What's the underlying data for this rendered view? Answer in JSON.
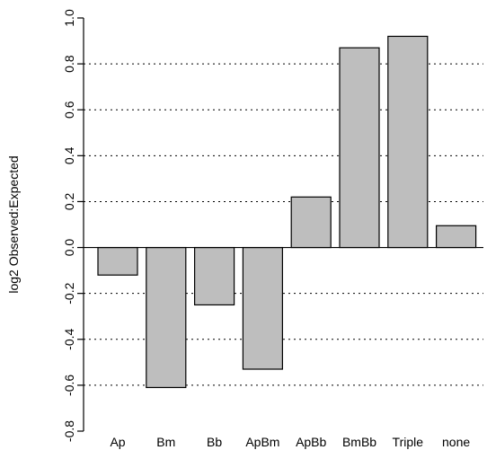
{
  "chart_data": {
    "type": "bar",
    "categories": [
      "Ap",
      "Bm",
      "Bb",
      "ApBm",
      "ApBb",
      "BmBb",
      "Triple",
      "none"
    ],
    "values": [
      -0.12,
      -0.61,
      -0.25,
      -0.53,
      0.22,
      0.87,
      0.92,
      0.095
    ],
    "title": "",
    "xlabel": "",
    "ylabel": "log2 Observed:Expected",
    "ylim": [
      -0.8,
      1.0
    ],
    "yticks": [
      -0.8,
      -0.6,
      -0.4,
      -0.2,
      0.0,
      0.2,
      0.4,
      0.6,
      0.8,
      1.0
    ],
    "ytick_labels": [
      "-0.8",
      "-0.6",
      "-0.4",
      "-0.2",
      "0.0",
      "0.2",
      "0.4",
      "0.6",
      "0.8",
      "1.0"
    ],
    "grid": "horizontal dotted at 0.2 steps",
    "bar_color": "#bebebe",
    "bar_edge_color": "#000000"
  }
}
